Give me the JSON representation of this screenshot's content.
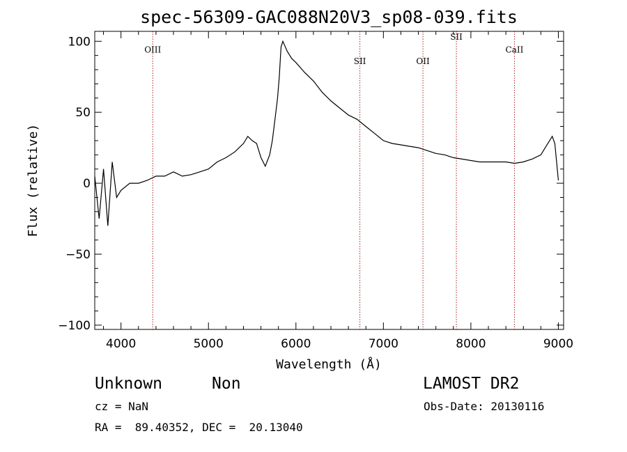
{
  "chart_data": {
    "type": "line",
    "title": "spec-56309-GAC088N20V3_sp08-039.fits",
    "xlabel": "Wavelength (Å)",
    "ylabel": "Flux (relative)",
    "xlim": [
      3700,
      9060
    ],
    "ylim": [
      -103,
      107
    ],
    "xticks": [
      4000,
      5000,
      6000,
      7000,
      8000,
      9000
    ],
    "yticks": [
      -100,
      -50,
      0,
      50,
      100
    ],
    "grid": false,
    "line_color": "#000000",
    "marker_color": "#aa2222",
    "spectral_lines": [
      {
        "label": "OIII",
        "x": 4363,
        "label_y": 92
      },
      {
        "label": "SII",
        "x": 6731,
        "label_y": 84
      },
      {
        "label": "OII",
        "x": 7452,
        "label_y": 84
      },
      {
        "label": "SII",
        "x": 7834,
        "label_y": 101
      },
      {
        "label": "CaII",
        "x": 8498,
        "label_y": 92
      }
    ],
    "series": [
      {
        "x": [
          3700,
          3750,
          3800,
          3850,
          3900,
          3950,
          4000,
          4100,
          4200,
          4300,
          4400,
          4500,
          4600,
          4700,
          4800,
          4900,
          5000,
          5100,
          5200,
          5300,
          5400,
          5450,
          5500,
          5550,
          5600,
          5650,
          5700,
          5730,
          5760,
          5790,
          5810,
          5830,
          5850,
          5900,
          5950,
          6000,
          6100,
          6200,
          6300,
          6400,
          6500,
          6600,
          6700,
          6800,
          6900,
          7000,
          7100,
          7200,
          7300,
          7400,
          7500,
          7600,
          7700,
          7800,
          7900,
          8000,
          8100,
          8200,
          8300,
          8400,
          8500,
          8600,
          8700,
          8800,
          8850,
          8900,
          8930,
          8960,
          9000
        ],
        "values": [
          5,
          -25,
          10,
          -30,
          15,
          -10,
          -5,
          0,
          0,
          2,
          5,
          5,
          8,
          5,
          6,
          8,
          10,
          15,
          18,
          22,
          28,
          33,
          30,
          28,
          18,
          12,
          20,
          30,
          45,
          60,
          75,
          96,
          100,
          93,
          88,
          85,
          78,
          72,
          64,
          58,
          53,
          48,
          45,
          40,
          35,
          30,
          28,
          27,
          26,
          25,
          23,
          21,
          20,
          18,
          17,
          16,
          15,
          15,
          15,
          15,
          14,
          15,
          17,
          20,
          25,
          30,
          33,
          28,
          2
        ]
      }
    ]
  },
  "info": {
    "class_label": "Unknown",
    "subclass_label": "Non",
    "survey": "LAMOST DR2",
    "cz": "cz = NaN",
    "obs_date": "Obs-Date: 20130116",
    "coords": "RA =  89.40352, DEC =  20.13040"
  }
}
